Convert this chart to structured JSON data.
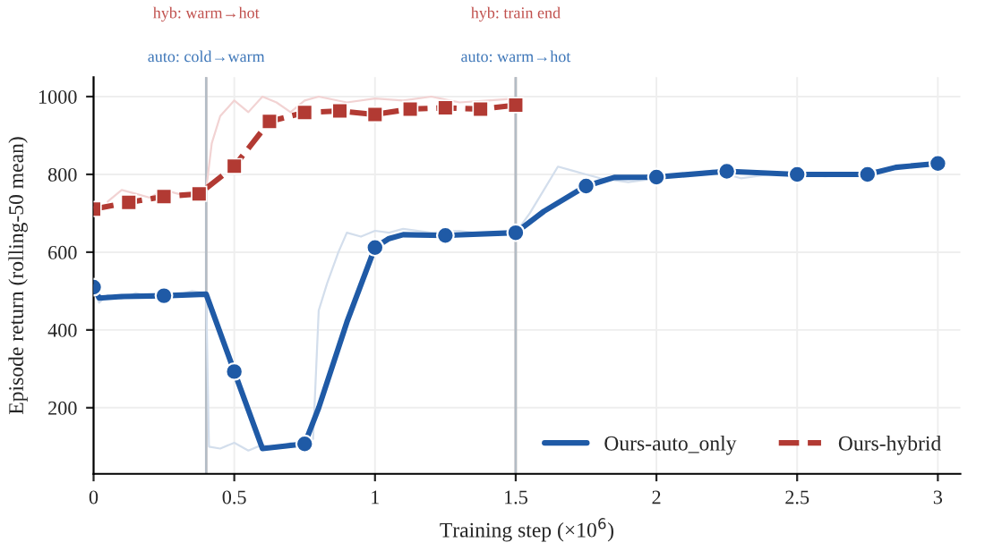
{
  "chart_data": {
    "type": "line",
    "xlabel": "Training step (×10$^{6}$)",
    "ylabel": "Episode return (rolling-50 mean)",
    "xlim": [
      0,
      3.08
    ],
    "ylim": [
      30,
      1050
    ],
    "xticks": [
      0,
      0.5,
      1,
      1.5,
      2,
      2.5,
      3
    ],
    "yticks": [
      200,
      400,
      600,
      800,
      1000
    ],
    "grid": true,
    "legend": "bottom right",
    "ref_lines": [
      {
        "axis": "x",
        "value": 0.4,
        "label": "hyb: warm→hot",
        "color": "#c0504d"
      },
      {
        "axis": "x",
        "value": 0.4,
        "label": "auto: cold→warm",
        "color": "#3d76b8"
      },
      {
        "axis": "x",
        "value": 1.5,
        "label": "hyb: train end",
        "color": "#c0504d"
      },
      {
        "axis": "x",
        "value": 1.5,
        "label": "auto: warm→hot",
        "color": "#3d76b8"
      }
    ],
    "series": [
      {
        "color": "#d3deec",
        "x": [
          0,
          0.02,
          0.05,
          0.1,
          0.15,
          0.2,
          0.25,
          0.3,
          0.35,
          0.4,
          0.41,
          0.45,
          0.5,
          0.55,
          0.6,
          0.65,
          0.7,
          0.75,
          0.78,
          0.8,
          0.83,
          0.87,
          0.9,
          0.95,
          1.0,
          1.05,
          1.1,
          1.2,
          1.3,
          1.4,
          1.5,
          1.55,
          1.6,
          1.65,
          1.7,
          1.75,
          1.8,
          1.9,
          2.0,
          2.1,
          2.2,
          2.3,
          2.4,
          2.5,
          2.6,
          2.7,
          2.8,
          2.9,
          3.0
        ],
        "values": [
          500,
          470,
          490,
          480,
          495,
          485,
          495,
          490,
          500,
          495,
          100,
          95,
          110,
          90,
          105,
          95,
          110,
          100,
          120,
          450,
          520,
          600,
          650,
          640,
          655,
          650,
          660,
          650,
          655,
          645,
          650,
          700,
          760,
          820,
          810,
          800,
          790,
          780,
          790,
          800,
          810,
          790,
          800,
          800,
          795,
          800,
          810,
          820,
          830
        ]
      },
      {
        "color": "#f2d3d3",
        "x": [
          0.05,
          0.1,
          0.15,
          0.2,
          0.25,
          0.3,
          0.35,
          0.4,
          0.42,
          0.45,
          0.5,
          0.55,
          0.6,
          0.65,
          0.7,
          0.75,
          0.8,
          0.9,
          1.0,
          1.1,
          1.2,
          1.3,
          1.4,
          1.5
        ],
        "values": [
          730,
          760,
          750,
          740,
          760,
          750,
          745,
          760,
          880,
          950,
          990,
          960,
          1000,
          985,
          960,
          990,
          1000,
          985,
          995,
          990,
          1000,
          985,
          990,
          995
        ]
      },
      {
        "name": "Ours-auto_only",
        "color": "#1f5aa6",
        "line_style": "solid",
        "marker": "none",
        "x": [
          0,
          0.02,
          0.1,
          0.25,
          0.4,
          0.5,
          0.6,
          0.75,
          0.8,
          0.9,
          1.0,
          1.05,
          1.1,
          1.25,
          1.5,
          1.6,
          1.75,
          1.85,
          2.0,
          2.25,
          2.5,
          2.75,
          2.85,
          3.0
        ],
        "values": [
          510,
          482,
          486,
          488,
          492,
          293,
          95,
          107,
          200,
          420,
          612,
          635,
          645,
          643,
          650,
          705,
          770,
          792,
          793,
          808,
          800,
          800,
          818,
          828
        ]
      },
      {
        "type": "scatter",
        "color": "#1f5aa6",
        "marker": "circle",
        "x": [
          0,
          0.25,
          0.5,
          0.75,
          1.0,
          1.25,
          1.5,
          1.75,
          2.0,
          2.25,
          2.5,
          2.75,
          3.0
        ],
        "values": [
          510,
          488,
          293,
          107,
          612,
          643,
          650,
          770,
          793,
          808,
          800,
          800,
          828
        ]
      },
      {
        "name": "Ours-hybrid",
        "color": "#b23a33",
        "line_style": "dashed",
        "marker": "square",
        "x": [
          0,
          0.125,
          0.25,
          0.375,
          0.5,
          0.625,
          0.75,
          0.875,
          1.0,
          1.125,
          1.25,
          1.375,
          1.5
        ],
        "values": [
          711,
          728,
          743,
          750,
          821,
          936,
          959,
          963,
          954,
          968,
          971,
          968,
          978
        ]
      }
    ]
  }
}
